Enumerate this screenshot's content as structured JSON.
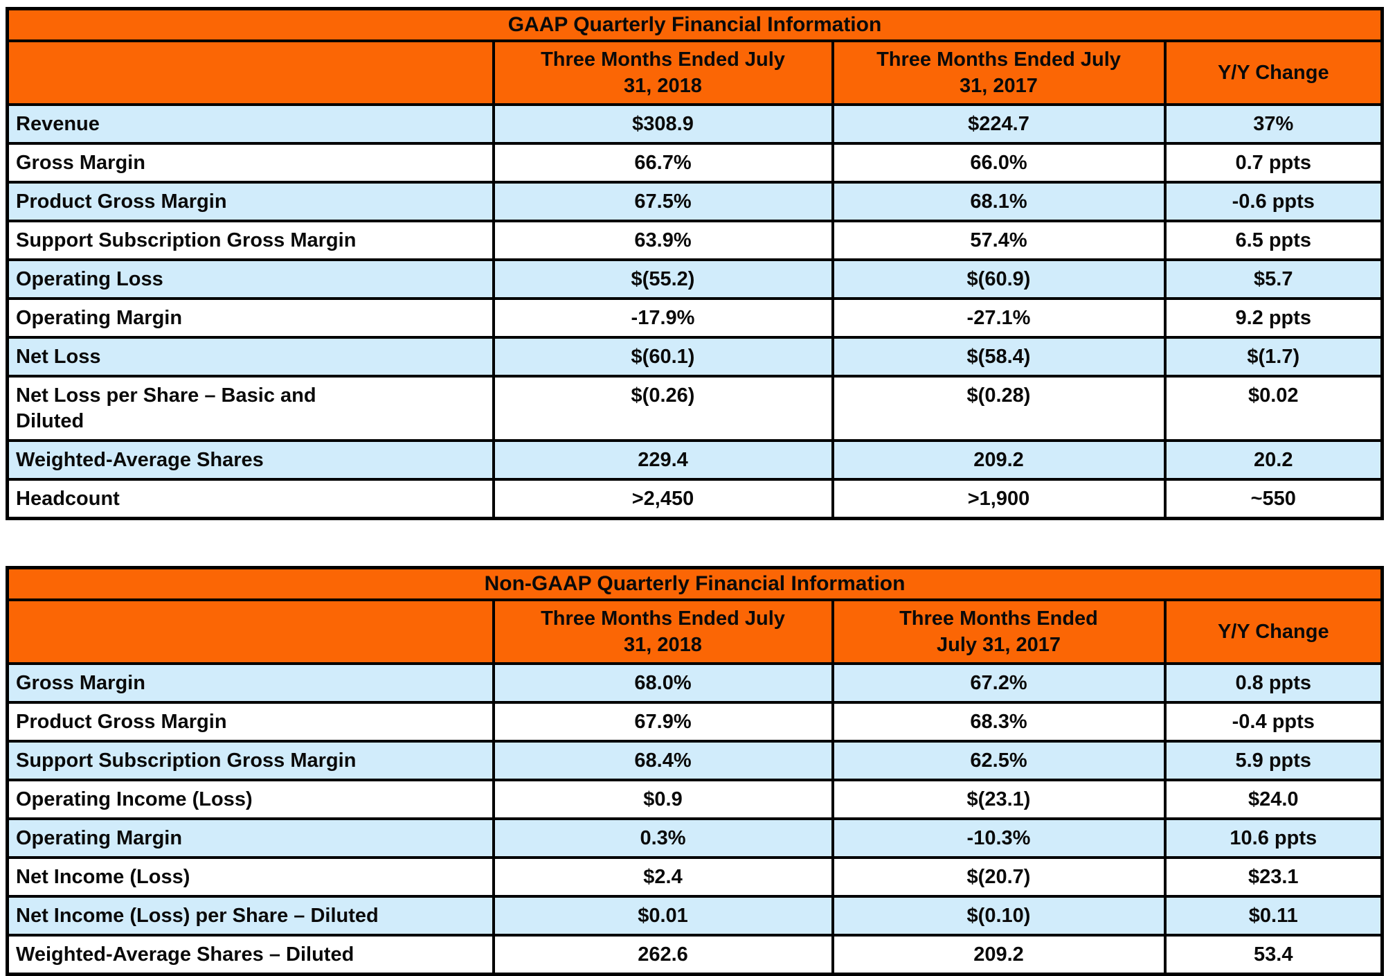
{
  "colors": {
    "header_fill": "#FB6605",
    "row_alt_fill": "#D1ECFB",
    "row_fill": "#FFFFFF",
    "border": "#000000",
    "text": "#0A0A0A"
  },
  "chart_data": [
    {
      "type": "table",
      "title": "GAAP Quarterly Financial Information",
      "columns": [
        "",
        "Three Months Ended July\n31, 2018",
        "Three Months Ended July\n31, 2017",
        "Y/Y Change"
      ],
      "rows": [
        {
          "label": "Revenue",
          "values": [
            "$308.9",
            "$224.7",
            "37%"
          ]
        },
        {
          "label": "Gross Margin",
          "values": [
            "66.7%",
            "66.0%",
            "0.7 ppts"
          ]
        },
        {
          "label": "Product Gross Margin",
          "values": [
            "67.5%",
            "68.1%",
            "-0.6 ppts"
          ]
        },
        {
          "label": "Support Subscription Gross Margin",
          "values": [
            "63.9%",
            "57.4%",
            "6.5 ppts"
          ]
        },
        {
          "label": "Operating Loss",
          "values": [
            "$(55.2)",
            "$(60.9)",
            "$5.7"
          ]
        },
        {
          "label": "Operating Margin",
          "values": [
            "-17.9%",
            "-27.1%",
            "9.2 ppts"
          ]
        },
        {
          "label": "Net Loss",
          "values": [
            "$(60.1)",
            "$(58.4)",
            "$(1.7)"
          ]
        },
        {
          "label": "Net Loss per Share – Basic and\nDiluted",
          "values": [
            "$(0.26)",
            "$(0.28)",
            "$0.02"
          ]
        },
        {
          "label": "Weighted-Average Shares",
          "values": [
            "229.4",
            "209.2",
            "20.2"
          ]
        },
        {
          "label": "Headcount",
          "values": [
            ">2,450",
            ">1,900",
            "~550"
          ]
        }
      ]
    },
    {
      "type": "table",
      "title": "Non-GAAP Quarterly Financial Information",
      "columns": [
        "",
        "Three Months Ended July\n31, 2018",
        "Three Months Ended\nJuly 31, 2017",
        "Y/Y Change"
      ],
      "rows": [
        {
          "label": "Gross Margin",
          "values": [
            "68.0%",
            "67.2%",
            "0.8 ppts"
          ]
        },
        {
          "label": "Product Gross Margin",
          "values": [
            "67.9%",
            "68.3%",
            "-0.4 ppts"
          ]
        },
        {
          "label": "Support Subscription Gross Margin",
          "values": [
            "68.4%",
            "62.5%",
            "5.9 ppts"
          ]
        },
        {
          "label": "Operating Income (Loss)",
          "values": [
            "$0.9",
            "$(23.1)",
            "$24.0"
          ]
        },
        {
          "label": "Operating Margin",
          "values": [
            "0.3%",
            "-10.3%",
            "10.6 ppts"
          ]
        },
        {
          "label": "Net Income (Loss)",
          "values": [
            "$2.4",
            "$(20.7)",
            "$23.1"
          ]
        },
        {
          "label": "Net Income (Loss) per Share – Diluted",
          "values": [
            "$0.01",
            "$(0.10)",
            "$0.11"
          ]
        },
        {
          "label": "Weighted-Average Shares – Diluted",
          "values": [
            "262.6",
            "209.2",
            "53.4"
          ]
        }
      ]
    }
  ]
}
